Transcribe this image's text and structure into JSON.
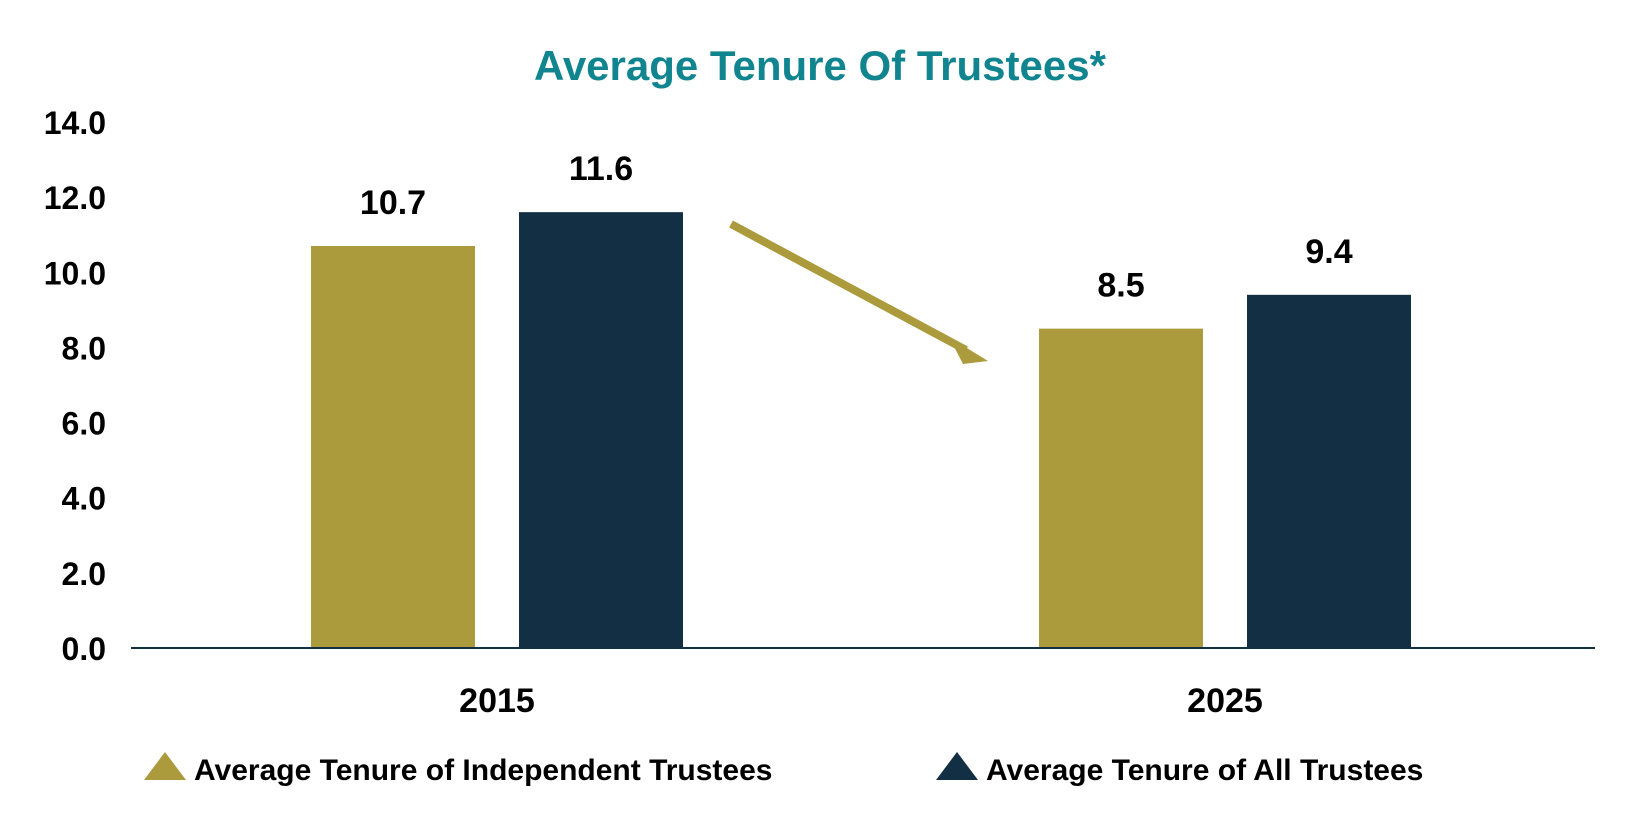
{
  "chart_data": {
    "type": "bar",
    "title": "Average Tenure Of Trustees*",
    "categories": [
      "2015",
      "2025"
    ],
    "series": [
      {
        "name": "Average Tenure of Independent Trustees",
        "values": [
          10.7,
          8.5
        ],
        "labels": [
          "10.7",
          "8.5"
        ],
        "color": "#AB9B3D"
      },
      {
        "name": "Average Tenure of All Trustees",
        "values": [
          11.6,
          9.4
        ],
        "labels": [
          "11.6",
          "9.4"
        ],
        "color": "#132F44"
      }
    ],
    "ylim": [
      0,
      14
    ],
    "yticks": [
      "0.0",
      "2.0",
      "4.0",
      "6.0",
      "8.0",
      "10.0",
      "12.0",
      "14.0"
    ],
    "grid": false,
    "legend_position": "bottom",
    "annotations": [
      "downward-trend-arrow"
    ]
  },
  "colors": {
    "title": "#11858F",
    "axis": "#132F44",
    "arrow": "#AB9B3D"
  }
}
